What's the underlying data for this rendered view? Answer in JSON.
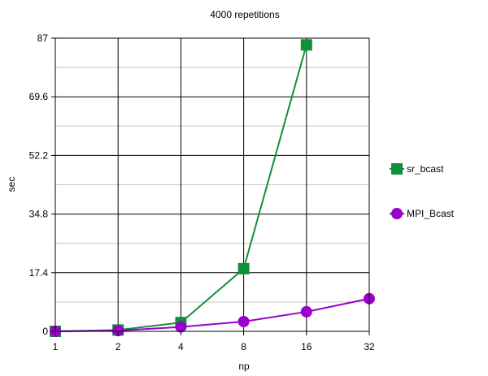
{
  "chart_data": {
    "type": "line",
    "title": "4000 repetitions",
    "xlabel": "np",
    "ylabel": "sec",
    "categories": [
      "1",
      "2",
      "4",
      "8",
      "16",
      "32"
    ],
    "yticks": [
      "0",
      "17.4",
      "34.8",
      "52.2",
      "69.6",
      "87"
    ],
    "ylim": [
      0,
      87
    ],
    "grid": true,
    "legend_position": "right",
    "series": [
      {
        "name": "sr_bcast",
        "color": "#0f9139",
        "marker": "square",
        "values": [
          0,
          0.4,
          2.6,
          18.6,
          85,
          null
        ]
      },
      {
        "name": "MPI_Bcast",
        "color": "#9900cc",
        "marker": "circle",
        "values": [
          0,
          0.2,
          1.3,
          2.9,
          5.8,
          9.7
        ]
      }
    ]
  }
}
